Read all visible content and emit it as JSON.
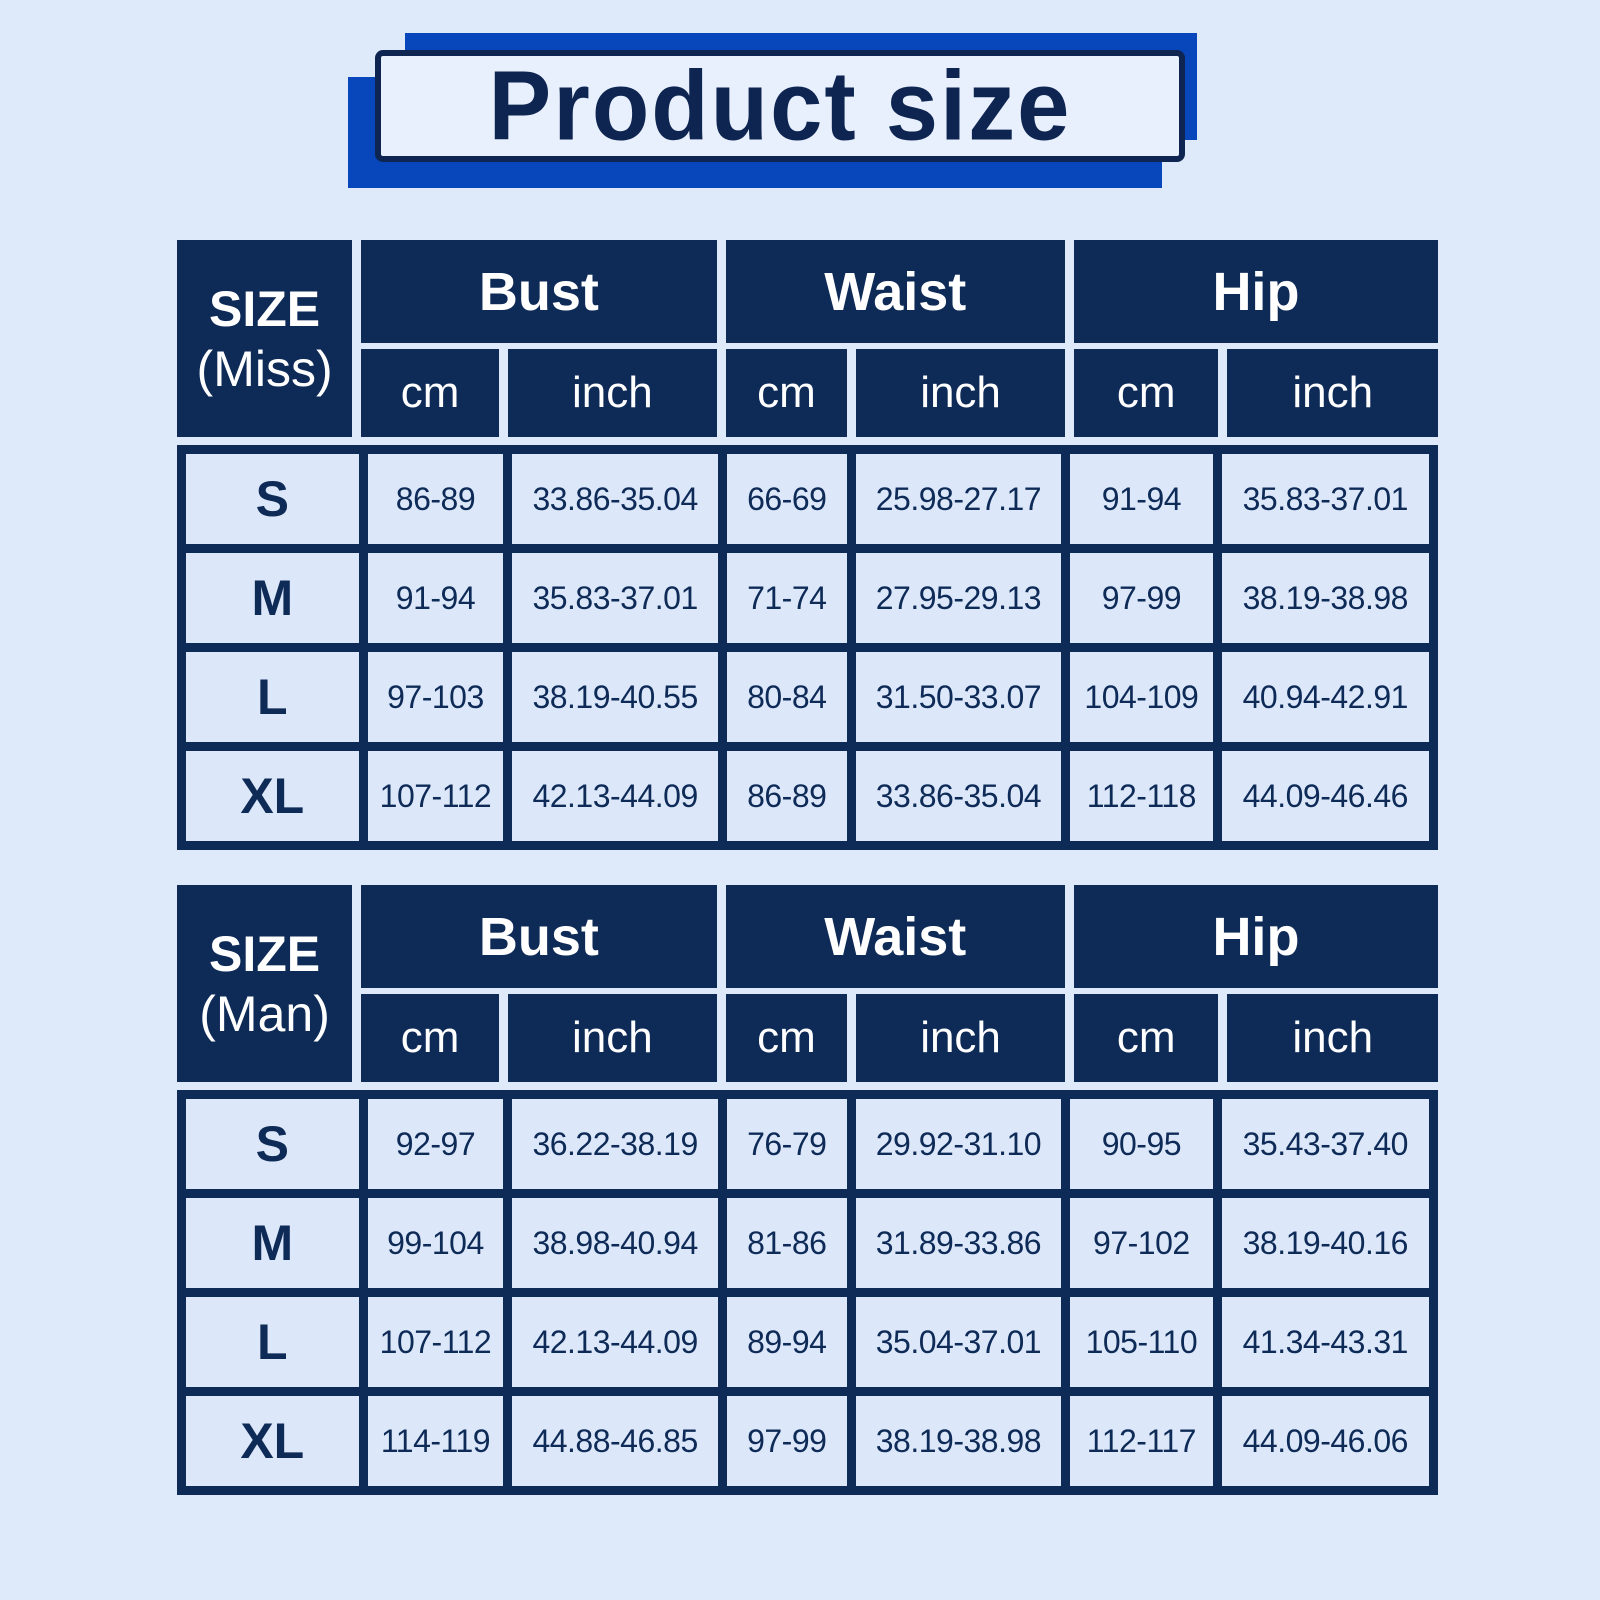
{
  "title": "Product size",
  "colors": {
    "background": "#dee9fa",
    "navy": "#0e2a57",
    "accent_blue": "#0747bb",
    "cell_fill": "#dce8fa",
    "title_box_fill": "#e8effd",
    "header_text": "#ffffff"
  },
  "header": {
    "size_label": "SIZE",
    "miss_sub": "(Miss)",
    "man_sub": "(Man)"
  },
  "chart_data": [
    {
      "type": "table",
      "title": "SIZE (Miss)",
      "column_groups": [
        "Bust",
        "Waist",
        "Hip"
      ],
      "units": [
        "cm",
        "inch"
      ],
      "columns": [
        "SIZE",
        "Bust cm",
        "Bust inch",
        "Waist cm",
        "Waist inch",
        "Hip cm",
        "Hip inch"
      ],
      "rows": [
        [
          "S",
          "86-89",
          "33.86-35.04",
          "66-69",
          "25.98-27.17",
          "91-94",
          "35.83-37.01"
        ],
        [
          "M",
          "91-94",
          "35.83-37.01",
          "71-74",
          "27.95-29.13",
          "97-99",
          "38.19-38.98"
        ],
        [
          "L",
          "97-103",
          "38.19-40.55",
          "80-84",
          "31.50-33.07",
          "104-109",
          "40.94-42.91"
        ],
        [
          "XL",
          "107-112",
          "42.13-44.09",
          "86-89",
          "33.86-35.04",
          "112-118",
          "44.09-46.46"
        ]
      ]
    },
    {
      "type": "table",
      "title": "SIZE (Man)",
      "column_groups": [
        "Bust",
        "Waist",
        "Hip"
      ],
      "units": [
        "cm",
        "inch"
      ],
      "columns": [
        "SIZE",
        "Bust cm",
        "Bust inch",
        "Waist cm",
        "Waist inch",
        "Hip cm",
        "Hip inch"
      ],
      "rows": [
        [
          "S",
          "92-97",
          "36.22-38.19",
          "76-79",
          "29.92-31.10",
          "90-95",
          "35.43-37.40"
        ],
        [
          "M",
          "99-104",
          "38.98-40.94",
          "81-86",
          "31.89-33.86",
          "97-102",
          "38.19-40.16"
        ],
        [
          "L",
          "107-112",
          "42.13-44.09",
          "89-94",
          "35.04-37.01",
          "105-110",
          "41.34-43.31"
        ],
        [
          "XL",
          "114-119",
          "44.88-46.85",
          "97-99",
          "38.19-38.98",
          "112-117",
          "44.09-46.06"
        ]
      ]
    }
  ]
}
